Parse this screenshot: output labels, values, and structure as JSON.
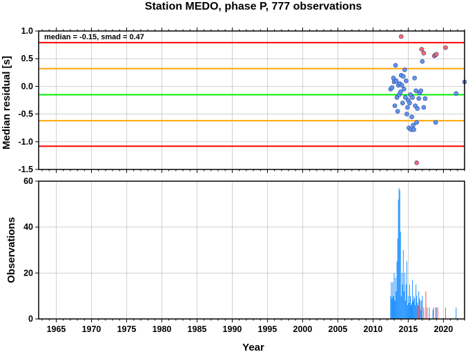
{
  "title": "Station MEDO, phase P, 777 observations",
  "chart_data": [
    {
      "type": "scatter",
      "ylabel": "Median residual [s]",
      "xlim": [
        1962.5,
        2023
      ],
      "ylim": [
        -1.5,
        1.0
      ],
      "grid": true,
      "annotation": "median = -0.15, smad = 0.47",
      "yticks": [
        "1.0",
        "0.5",
        "0.0",
        "-0.5",
        "-1.0",
        "-1.5"
      ],
      "hlines": [
        {
          "y": 0.79,
          "color": "#ff0000"
        },
        {
          "y": 0.32,
          "color": "#ffa500"
        },
        {
          "y": -0.15,
          "color": "#00ee00"
        },
        {
          "y": -0.62,
          "color": "#ffa500"
        },
        {
          "y": -1.08,
          "color": "#ff0000"
        }
      ],
      "series": [
        {
          "color": "#6495ed",
          "points": [
            [
              2012.5,
              -0.05
            ],
            [
              2012.7,
              -0.02
            ],
            [
              2012.9,
              0.15
            ],
            [
              2013.0,
              0.08
            ],
            [
              2013.1,
              -0.35
            ],
            [
              2013.2,
              0.38
            ],
            [
              2013.3,
              0.1
            ],
            [
              2013.4,
              -0.2
            ],
            [
              2013.5,
              -0.45
            ],
            [
              2013.6,
              0.02
            ],
            [
              2013.7,
              -0.15
            ],
            [
              2013.8,
              0.05
            ],
            [
              2013.9,
              -0.1
            ],
            [
              2014.0,
              0.2
            ],
            [
              2014.1,
              0.02
            ],
            [
              2014.2,
              -0.3
            ],
            [
              2014.3,
              0.18
            ],
            [
              2014.4,
              -0.05
            ],
            [
              2014.5,
              0.3
            ],
            [
              2014.6,
              -0.2
            ],
            [
              2014.7,
              0.1
            ],
            [
              2014.8,
              -0.5
            ],
            [
              2014.9,
              -0.38
            ],
            [
              2015.0,
              -0.25
            ],
            [
              2015.1,
              -0.75
            ],
            [
              2015.2,
              -0.3
            ],
            [
              2015.3,
              -0.15
            ],
            [
              2015.4,
              -0.78
            ],
            [
              2015.5,
              -0.55
            ],
            [
              2015.6,
              -0.2
            ],
            [
              2015.7,
              -0.7
            ],
            [
              2015.8,
              -0.78
            ],
            [
              2015.9,
              0.15
            ],
            [
              2016.0,
              -0.35
            ],
            [
              2016.1,
              -0.08
            ],
            [
              2016.2,
              -0.65
            ],
            [
              2016.3,
              -0.4
            ],
            [
              2016.5,
              -0.22
            ],
            [
              2016.6,
              -0.12
            ],
            [
              2016.8,
              -0.08
            ],
            [
              2017.0,
              0.45
            ],
            [
              2017.2,
              -0.38
            ],
            [
              2017.4,
              -0.22
            ],
            [
              2018.9,
              -0.65
            ],
            [
              2021.8,
              -0.13
            ],
            [
              2023.0,
              0.08
            ]
          ]
        },
        {
          "color": "#ff6a6a",
          "points": [
            [
              2014.0,
              0.9
            ],
            [
              2016.2,
              -1.38
            ],
            [
              2016.9,
              0.67
            ],
            [
              2017.2,
              0.6
            ],
            [
              2018.7,
              0.55
            ],
            [
              2018.9,
              0.57
            ],
            [
              2019.0,
              0.58
            ],
            [
              2020.3,
              0.7
            ]
          ]
        }
      ]
    },
    {
      "type": "bar",
      "ylabel": "Observations",
      "xlabel": "Year",
      "xlim": [
        1962.5,
        2023
      ],
      "ylim": [
        0,
        60
      ],
      "grid": true,
      "yticks": [
        "60",
        "40",
        "20",
        "0"
      ],
      "xticks": [
        "1965",
        "1970",
        "1975",
        "1980",
        "1985",
        "1990",
        "1995",
        "2000",
        "2005",
        "2010",
        "2015",
        "2020"
      ],
      "series": [
        {
          "color": "#1e90ff",
          "x": [
            2012.5,
            2012.6,
            2012.7,
            2012.8,
            2012.9,
            2013.0,
            2013.1,
            2013.2,
            2013.3,
            2013.4,
            2013.5,
            2013.6,
            2013.7,
            2013.8,
            2013.9,
            2014.0,
            2014.1,
            2014.2,
            2014.3,
            2014.4,
            2014.5,
            2014.6,
            2014.7,
            2014.8,
            2014.9,
            2015.0,
            2015.1,
            2015.2,
            2015.3,
            2015.4,
            2015.5,
            2015.6,
            2015.7,
            2015.8,
            2015.9,
            2016.0,
            2016.1,
            2016.2,
            2016.3,
            2016.4,
            2016.5,
            2016.6,
            2016.7,
            2016.8,
            2016.9,
            2017.0,
            2017.2,
            2017.5,
            2018.0,
            2018.5,
            2019.0,
            2021.8,
            2023.0
          ],
          "values": [
            10,
            16,
            9,
            16,
            10,
            20,
            8,
            18,
            12,
            25,
            35,
            52,
            57,
            56,
            38,
            10,
            20,
            15,
            30,
            12,
            20,
            8,
            15,
            25,
            6,
            10,
            7,
            15,
            10,
            6,
            7,
            17,
            8,
            10,
            9,
            6,
            15,
            10,
            7,
            6,
            12,
            9,
            8,
            4,
            8,
            10,
            4,
            6,
            5,
            4,
            5,
            5,
            6
          ]
        },
        {
          "color": "#ff4d4d",
          "x": [
            2016.3,
            2016.5,
            2016.6,
            2016.9,
            2017.2,
            2017.5,
            2017.7,
            2018.6,
            2018.9,
            2019.2,
            2020.3
          ],
          "values": [
            5,
            6,
            5,
            6,
            5,
            12,
            5,
            5,
            5,
            5,
            5
          ]
        }
      ]
    }
  ]
}
